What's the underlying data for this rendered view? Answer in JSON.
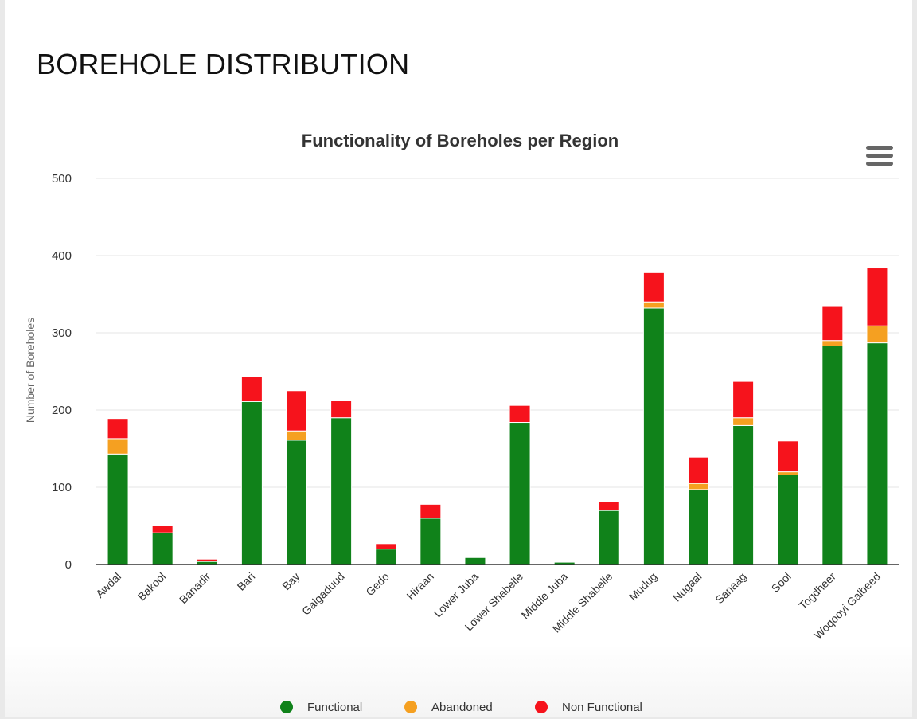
{
  "page": {
    "title": "BOREHOLE DISTRIBUTION"
  },
  "menu": {
    "icon": "hamburger-menu-icon"
  },
  "colors": {
    "functional": "#10821a",
    "abandoned": "#f5a021",
    "non_functional": "#f6131c",
    "axis": "#333333",
    "grid": "#e6e6e6"
  },
  "chart_data": {
    "type": "bar",
    "stacked": true,
    "title": "Functionality of Boreholes per Region",
    "xlabel": "",
    "ylabel": "Number of Boreholes",
    "ylim": [
      0,
      500
    ],
    "yticks": [
      0,
      100,
      200,
      300,
      400,
      500
    ],
    "grid": true,
    "legend_position": "bottom",
    "categories": [
      "Awdal",
      "Bakool",
      "Banadir",
      "Bari",
      "Bay",
      "Galgaduud",
      "Gedo",
      "Hiraan",
      "Lower Juba",
      "Lower Shabelle",
      "Middle Juba",
      "Middle Shabelle",
      "Mudug",
      "Nugaal",
      "Sanaag",
      "Sool",
      "Togdheer",
      "Woqooyi Galbeed"
    ],
    "series": [
      {
        "name": "Functional",
        "color": "#10821a",
        "values": [
          143,
          41,
          4,
          211,
          161,
          190,
          20,
          60,
          9,
          184,
          3,
          70,
          332,
          97,
          180,
          116,
          283,
          287
        ]
      },
      {
        "name": "Abandoned",
        "color": "#f5a021",
        "values": [
          20,
          0,
          0,
          0,
          12,
          0,
          0,
          0,
          0,
          0,
          0,
          0,
          8,
          8,
          10,
          4,
          7,
          22
        ]
      },
      {
        "name": "Non Functional",
        "color": "#f6131c",
        "values": [
          26,
          9,
          3,
          32,
          52,
          22,
          7,
          18,
          0,
          22,
          0,
          11,
          38,
          34,
          47,
          40,
          45,
          75
        ]
      }
    ]
  }
}
